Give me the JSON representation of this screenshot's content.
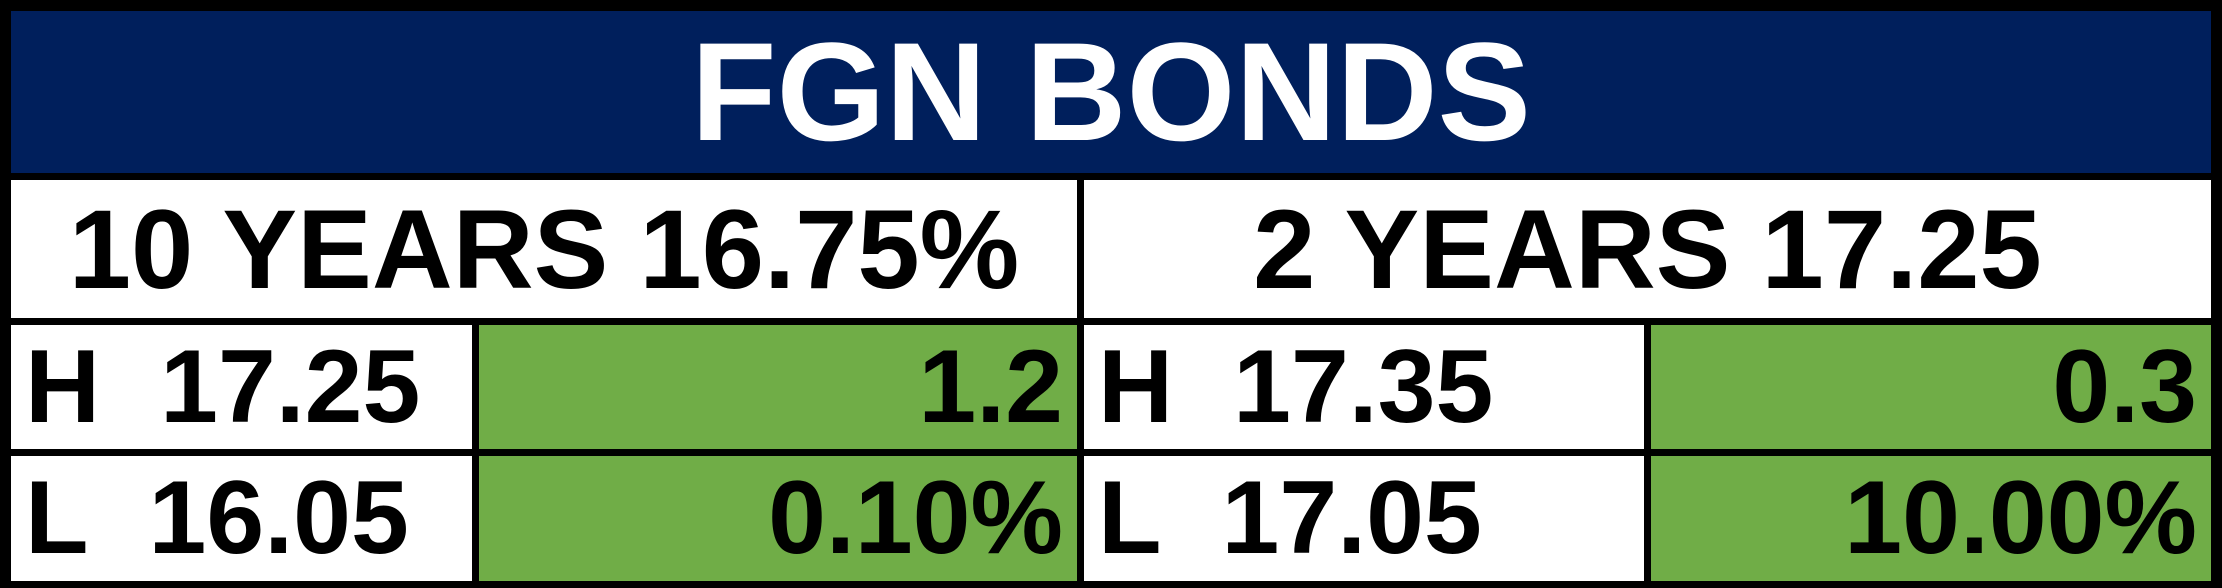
{
  "title": "FGN BONDS",
  "panels": [
    {
      "heading": "10 YEARS 16.75%",
      "rows": [
        {
          "label": "H",
          "value": "17.25",
          "change": "1.2"
        },
        {
          "label": "L",
          "value": "16.05",
          "change": "0.10%"
        }
      ]
    },
    {
      "heading": "2 YEARS 17.25",
      "rows": [
        {
          "label": "H",
          "value": "17.35",
          "change": "0.3"
        },
        {
          "label": "L",
          "value": "17.05",
          "change": "10.00%"
        }
      ]
    }
  ]
}
